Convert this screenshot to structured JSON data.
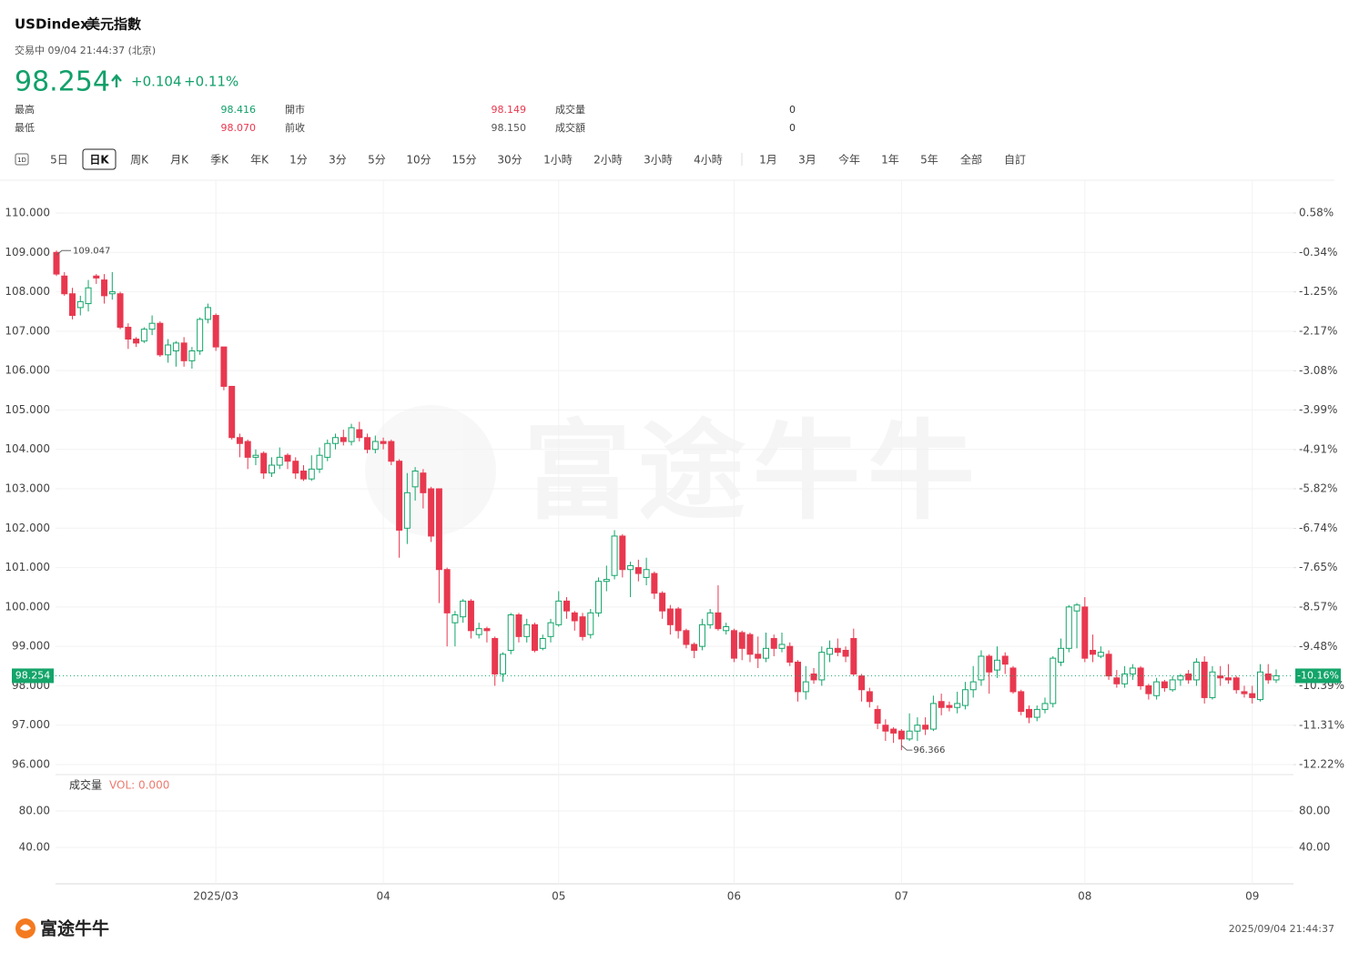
{
  "header": {
    "symbol": "USDindex",
    "name": "美元指數",
    "status": "交易中 09/04 21:44:37 (北京)",
    "price": "98.254",
    "change": "+0.104",
    "change_pct": "+0.11%"
  },
  "stats": [
    [
      "最高",
      "98.416"
    ],
    [
      "最低",
      "98.070"
    ],
    [
      "開市",
      "98.149"
    ],
    [
      "前收",
      "98.150"
    ],
    [
      "成交量",
      "0"
    ],
    [
      "成交額",
      "0"
    ]
  ],
  "tabs": [
    "1D",
    "5日",
    "日K",
    "周K",
    "月K",
    "季K",
    "年K",
    "1分",
    "3分",
    "5分",
    "10分",
    "15分",
    "30分",
    "1小時",
    "2小時",
    "3小時",
    "4小時",
    "1月",
    "3月",
    "今年",
    "1年",
    "5年",
    "全部",
    "自訂"
  ],
  "chart_data": {
    "type": "candlestick",
    "categories": [
      null,
      null,
      null,
      null,
      null,
      null,
      null,
      null,
      null,
      null,
      null,
      null,
      null,
      null,
      null,
      null,
      null,
      null,
      null,
      null,
      "2025/03",
      null,
      null,
      null,
      null,
      null,
      null,
      null,
      null,
      null,
      null,
      null,
      null,
      null,
      null,
      null,
      null,
      null,
      null,
      null,
      null,
      "04",
      null,
      null,
      null,
      null,
      null,
      null,
      null,
      null,
      null,
      null,
      null,
      null,
      null,
      null,
      null,
      null,
      null,
      null,
      null,
      null,
      null,
      "05",
      null,
      null,
      null,
      null,
      null,
      null,
      null,
      null,
      null,
      null,
      null,
      null,
      null,
      null,
      null,
      null,
      null,
      null,
      null,
      null,
      null,
      "06",
      null,
      null,
      null,
      null,
      null,
      null,
      null,
      null,
      null,
      null,
      null,
      null,
      null,
      null,
      null,
      null,
      null,
      null,
      null,
      null,
      "07",
      null,
      null,
      null,
      null,
      null,
      null,
      null,
      null,
      null,
      null,
      null,
      null,
      null,
      null,
      null,
      null,
      null,
      null,
      null,
      null,
      null,
      null,
      "08",
      null,
      null,
      null,
      null,
      null,
      null,
      null,
      null,
      null,
      null,
      null,
      null,
      null,
      null,
      null,
      null,
      null,
      null,
      null,
      null,
      "09",
      null,
      null,
      null
    ],
    "open": [
      109.0,
      108.4,
      107.95,
      107.6,
      107.7,
      108.4,
      108.3,
      107.95,
      107.95,
      107.1,
      106.8,
      106.75,
      107.05,
      107.2,
      106.4,
      106.5,
      106.7,
      106.25,
      106.5,
      107.3,
      107.4,
      106.6,
      105.6,
      104.3,
      104.2,
      103.8,
      103.9,
      103.4,
      103.6,
      103.85,
      103.7,
      103.45,
      103.25,
      103.5,
      103.8,
      104.15,
      104.3,
      104.2,
      104.5,
      104.3,
      104.0,
      104.2,
      104.2,
      103.7,
      102.0,
      103.05,
      103.4,
      103.0,
      103.0,
      100.95,
      99.6,
      99.75,
      100.15,
      99.3,
      99.45,
      99.2,
      98.3,
      98.9,
      99.8,
      99.25,
      99.55,
      98.95,
      99.25,
      99.55,
      100.15,
      99.85,
      99.75,
      99.3,
      99.85,
      100.65,
      100.8,
      101.8,
      100.95,
      101.0,
      100.75,
      100.85,
      100.35,
      99.95,
      99.95,
      99.4,
      99.05,
      99.0,
      99.55,
      99.85,
      99.4,
      99.4,
      99.35,
      99.3,
      98.8,
      98.7,
      99.2,
      98.95,
      99.0,
      98.6,
      97.85,
      98.3,
      98.15,
      98.8,
      98.95,
      98.9,
      99.2,
      98.25,
      97.85,
      97.4,
      97.0,
      96.9,
      96.85,
      96.65,
      96.85,
      97.0,
      96.9,
      97.6,
      97.5,
      97.45,
      97.5,
      97.9,
      98.15,
      98.75,
      98.4,
      98.75,
      98.45,
      97.85,
      97.4,
      97.2,
      97.4,
      97.55,
      98.6,
      98.95,
      99.9,
      100.0,
      98.9,
      98.75,
      98.8,
      98.2,
      98.05,
      98.3,
      98.45,
      98.0,
      97.75,
      98.1,
      97.9,
      98.15,
      98.3,
      98.15,
      98.6,
      97.7,
      98.25,
      98.2,
      98.2,
      97.85,
      97.8,
      97.65,
      98.3,
      98.149
    ],
    "high": [
      109.047,
      108.5,
      108.1,
      107.9,
      108.3,
      108.45,
      108.45,
      108.5,
      108.0,
      107.2,
      106.85,
      107.1,
      107.4,
      107.25,
      106.8,
      106.75,
      106.85,
      106.6,
      107.35,
      107.7,
      107.45,
      106.6,
      105.6,
      104.4,
      104.25,
      104.0,
      103.95,
      103.8,
      104.05,
      103.9,
      103.8,
      103.6,
      103.85,
      104.05,
      104.25,
      104.4,
      104.5,
      104.65,
      104.7,
      104.4,
      104.35,
      104.3,
      104.25,
      103.75,
      103.4,
      103.55,
      103.5,
      103.05,
      103.0,
      101.0,
      99.9,
      100.2,
      100.2,
      99.6,
      99.5,
      99.25,
      98.85,
      99.85,
      99.85,
      99.7,
      99.6,
      99.3,
      99.7,
      100.4,
      100.25,
      99.9,
      99.85,
      99.95,
      100.75,
      101.05,
      101.95,
      101.85,
      101.15,
      101.2,
      101.25,
      100.9,
      100.4,
      100.05,
      100.0,
      99.45,
      99.1,
      99.7,
      99.95,
      100.55,
      99.6,
      99.45,
      99.4,
      99.35,
      99.25,
      99.35,
      99.3,
      99.35,
      99.1,
      98.65,
      98.5,
      98.45,
      99.0,
      99.15,
      99.2,
      99.0,
      99.45,
      98.3,
      97.95,
      97.5,
      97.15,
      96.95,
      96.9,
      97.3,
      97.2,
      97.2,
      97.75,
      97.8,
      97.6,
      97.85,
      98.1,
      98.5,
      98.9,
      98.8,
      99.0,
      98.85,
      98.5,
      97.9,
      97.5,
      97.5,
      97.7,
      98.75,
      99.2,
      100.05,
      100.1,
      100.25,
      99.3,
      99.0,
      98.9,
      98.4,
      98.5,
      98.55,
      98.5,
      98.05,
      98.2,
      98.15,
      98.25,
      98.3,
      98.4,
      98.7,
      98.75,
      98.5,
      98.5,
      98.55,
      98.25,
      98.0,
      98.0,
      98.55,
      98.55,
      98.416
    ],
    "low": [
      108.4,
      107.9,
      107.3,
      107.4,
      107.5,
      108.2,
      107.7,
      107.8,
      107.05,
      106.55,
      106.6,
      106.7,
      106.9,
      106.35,
      106.2,
      106.1,
      106.1,
      106.05,
      106.4,
      107.2,
      106.5,
      105.5,
      104.25,
      103.8,
      103.5,
      103.6,
      103.25,
      103.3,
      103.5,
      103.5,
      103.25,
      103.2,
      103.2,
      103.4,
      103.7,
      104.0,
      104.1,
      104.1,
      104.2,
      103.9,
      103.9,
      104.0,
      103.6,
      101.25,
      101.6,
      102.7,
      102.5,
      101.65,
      100.1,
      99.0,
      99.0,
      99.6,
      99.2,
      99.2,
      99.1,
      98.0,
      98.1,
      98.8,
      99.1,
      99.1,
      98.85,
      98.9,
      99.1,
      99.5,
      99.7,
      99.4,
      99.15,
      99.2,
      99.75,
      100.4,
      100.7,
      100.75,
      100.25,
      100.65,
      100.55,
      100.2,
      99.7,
      99.3,
      99.2,
      98.95,
      98.7,
      98.9,
      99.45,
      99.4,
      99.3,
      98.6,
      98.65,
      98.6,
      98.45,
      98.6,
      98.75,
      98.85,
      98.5,
      97.6,
      97.65,
      98.05,
      98.0,
      98.6,
      98.75,
      98.6,
      98.25,
      97.6,
      97.45,
      96.9,
      96.6,
      96.55,
      96.366,
      96.6,
      96.6,
      96.75,
      96.85,
      97.25,
      97.35,
      97.3,
      97.4,
      97.7,
      98.0,
      97.8,
      98.2,
      98.3,
      97.8,
      97.25,
      97.05,
      97.1,
      97.3,
      97.45,
      98.5,
      98.85,
      98.95,
      98.6,
      98.6,
      98.7,
      98.15,
      97.95,
      97.95,
      98.15,
      97.9,
      97.65,
      97.65,
      97.85,
      97.85,
      98.0,
      98.05,
      98.0,
      97.55,
      97.65,
      98.0,
      98.05,
      97.8,
      97.7,
      97.55,
      97.6,
      98.05,
      98.07
    ],
    "close": [
      108.45,
      107.95,
      107.4,
      107.75,
      108.1,
      108.35,
      107.9,
      108.0,
      107.1,
      106.8,
      106.7,
      107.05,
      107.2,
      106.4,
      106.65,
      106.7,
      106.25,
      106.5,
      107.3,
      107.6,
      106.6,
      105.6,
      104.3,
      104.15,
      103.8,
      103.85,
      103.4,
      103.6,
      103.8,
      103.7,
      103.4,
      103.25,
      103.5,
      103.85,
      104.15,
      104.3,
      104.2,
      104.55,
      104.3,
      104.0,
      104.2,
      104.15,
      103.7,
      101.95,
      102.9,
      103.45,
      102.9,
      101.8,
      100.95,
      99.85,
      99.8,
      100.15,
      99.4,
      99.45,
      99.4,
      98.3,
      98.8,
      99.8,
      99.25,
      99.55,
      98.9,
      99.2,
      99.6,
      100.15,
      99.9,
      99.65,
      99.25,
      99.85,
      100.65,
      100.7,
      101.8,
      100.95,
      101.05,
      100.85,
      100.95,
      100.35,
      99.9,
      99.55,
      99.4,
      99.05,
      98.9,
      99.55,
      99.85,
      99.45,
      99.5,
      98.7,
      98.95,
      98.8,
      98.7,
      98.95,
      98.95,
      99.05,
      98.6,
      97.85,
      98.1,
      98.15,
      98.85,
      98.95,
      98.85,
      98.75,
      98.3,
      97.9,
      97.6,
      97.05,
      96.85,
      96.8,
      96.65,
      96.85,
      97.0,
      96.9,
      97.55,
      97.45,
      97.45,
      97.55,
      97.9,
      98.1,
      98.75,
      98.35,
      98.65,
      98.55,
      97.85,
      97.35,
      97.2,
      97.4,
      97.55,
      98.7,
      98.95,
      100.0,
      100.05,
      98.7,
      98.8,
      98.85,
      98.25,
      98.05,
      98.3,
      98.45,
      98.0,
      97.8,
      98.1,
      97.95,
      98.15,
      98.25,
      98.15,
      98.6,
      97.7,
      98.35,
      98.2,
      98.15,
      97.9,
      97.8,
      97.7,
      98.35,
      98.15,
      98.254
    ],
    "up_color": "#14a56a",
    "down_color": "#e8384f",
    "ylim": [
      96,
      110
    ],
    "yticks": [
      {
        "value": 110,
        "label": "110.000"
      },
      {
        "value": 109,
        "label": "109.000"
      },
      {
        "value": 108,
        "label": "108.000"
      },
      {
        "value": 107,
        "label": "107.000"
      },
      {
        "value": 106,
        "label": "106.000"
      },
      {
        "value": 105,
        "label": "105.000"
      },
      {
        "value": 104,
        "label": "104.000"
      },
      {
        "value": 103,
        "label": "103.000"
      },
      {
        "value": 102,
        "label": "102.000"
      },
      {
        "value": 101,
        "label": "101.000"
      },
      {
        "value": 100,
        "label": "100.000"
      },
      {
        "value": 99,
        "label": "99.000"
      },
      {
        "value": 98,
        "label": "98.000"
      },
      {
        "value": 97,
        "label": "97.000"
      },
      {
        "value": 96,
        "label": "96.000"
      }
    ],
    "y2lim": [
      -12.22,
      0.58
    ],
    "y2ticks": [
      {
        "value": 0.58,
        "label": "0.58%"
      },
      {
        "value": -0.34,
        "label": "-0.34%"
      },
      {
        "value": -1.25,
        "label": "-1.25%"
      },
      {
        "value": -2.17,
        "label": "-2.17%"
      },
      {
        "value": -3.08,
        "label": "-3.08%"
      },
      {
        "value": -3.99,
        "label": "-3.99%"
      },
      {
        "value": -4.91,
        "label": "-4.91%"
      },
      {
        "value": -5.82,
        "label": "-5.82%"
      },
      {
        "value": -6.74,
        "label": "-6.74%"
      },
      {
        "value": -7.65,
        "label": "-7.65%"
      },
      {
        "value": -8.57,
        "label": "-8.57%"
      },
      {
        "value": -9.48,
        "label": "-9.48%"
      },
      {
        "value": -10.39,
        "label": "-10.39%"
      },
      {
        "value": -11.31,
        "label": "-11.31%"
      },
      {
        "value": -12.22,
        "label": "-12.22%"
      }
    ],
    "grid": true,
    "annotations": {
      "high": 109.047,
      "low": 96.366
    },
    "last_price": 98.254,
    "last_change": {
      "value": -10.16,
      "label": "-10.16%"
    },
    "volume": {
      "title": "成交量",
      "label": "VOL: 0.000",
      "ylim": [
        0,
        120
      ],
      "yticks": [
        {
          "value": 80,
          "label": "80.00"
        },
        {
          "value": 40,
          "label": "40.00"
        }
      ]
    }
  },
  "watermark": "富途牛牛",
  "footer": {
    "logo": "富途牛牛",
    "timestamp": "2025/09/04 21:44:37"
  }
}
